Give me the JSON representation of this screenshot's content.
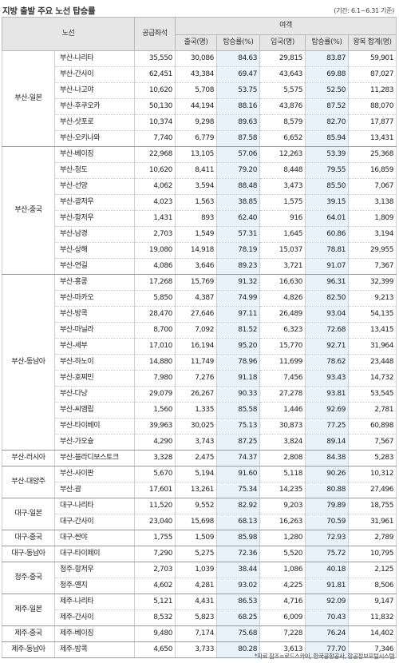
{
  "title": "지방 출발 주요 노선 탑승률",
  "period": "(기간: 6.1~6.31 기준)",
  "headers": {
    "route": "노선",
    "seats": "공급좌석",
    "passengers": "여객",
    "departure": "출국(명)",
    "departure_rate": "탑승률(%)",
    "arrival": "입국(명)",
    "arrival_rate": "탑승률(%)",
    "total": "왕복 합계(명)"
  },
  "groups": [
    {
      "region": "부산-일본",
      "rows": [
        [
          "부산-나리타",
          "35,550",
          "30,086",
          "84.63",
          "29,815",
          "83.87",
          "59,901"
        ],
        [
          "부산-간사이",
          "62,451",
          "43,384",
          "69.47",
          "43,643",
          "69.88",
          "87,027"
        ],
        [
          "부산-나고야",
          "10,620",
          "5,708",
          "53.75",
          "5,575",
          "52.50",
          "11,283"
        ],
        [
          "부산-후쿠오카",
          "50,130",
          "44,194",
          "88.16",
          "43,876",
          "87.52",
          "88,070"
        ],
        [
          "부산-삿포로",
          "10,374",
          "9,298",
          "89.63",
          "8,579",
          "82.70",
          "17,877"
        ],
        [
          "부산-오키나와",
          "7,740",
          "6,779",
          "87.58",
          "6,652",
          "85.94",
          "13,431"
        ]
      ]
    },
    {
      "region": "부산-중국",
      "rows": [
        [
          "부산-베이징",
          "22,968",
          "13,105",
          "57.06",
          "12,263",
          "53.39",
          "25,368"
        ],
        [
          "부산-청도",
          "10,620",
          "8,411",
          "79.20",
          "8,448",
          "79.55",
          "16,859"
        ],
        [
          "부산-선양",
          "4,062",
          "3,594",
          "88.48",
          "3,473",
          "85.50",
          "7,067"
        ],
        [
          "부산-광저우",
          "4,023",
          "1,563",
          "38.85",
          "1,575",
          "39.15",
          "3,138"
        ],
        [
          "부산-항저우",
          "1,431",
          "893",
          "62.40",
          "916",
          "64.01",
          "1,809"
        ],
        [
          "부산-남경",
          "2,703",
          "1,549",
          "57.31",
          "1,645",
          "60.86",
          "3,194"
        ],
        [
          "부산-상해",
          "19,080",
          "14,918",
          "78.19",
          "15,037",
          "78.81",
          "29,955"
        ],
        [
          "부산-연길",
          "4,086",
          "3,646",
          "89.23",
          "3,721",
          "91.07",
          "7,367"
        ]
      ]
    },
    {
      "region": "부산-동남아",
      "rows": [
        [
          "부산-홍콩",
          "17,268",
          "15,769",
          "91.32",
          "16,630",
          "96.31",
          "32,399"
        ],
        [
          "부산-마카오",
          "5,850",
          "4,387",
          "74.99",
          "4,826",
          "82.50",
          "9,213"
        ],
        [
          "부산-방콕",
          "28,470",
          "27,646",
          "97.11",
          "26,489",
          "93.04",
          "54,135"
        ],
        [
          "부산-마닐라",
          "8,700",
          "7,092",
          "81.52",
          "6,323",
          "72.68",
          "13,415"
        ],
        [
          "부산-세부",
          "17,010",
          "16,194",
          "95.20",
          "15,770",
          "92.71",
          "31,964"
        ],
        [
          "부산-하노이",
          "14,880",
          "11,749",
          "78.96",
          "11,699",
          "78.62",
          "23,448"
        ],
        [
          "부산-호찌민",
          "7,980",
          "7,276",
          "91.18",
          "7,456",
          "93.43",
          "14,732"
        ],
        [
          "부산-다낭",
          "29,079",
          "26,267",
          "90.33",
          "27,278",
          "93.81",
          "53,545"
        ],
        [
          "부산-씨엠립",
          "1,560",
          "1,335",
          "85.58",
          "1,446",
          "92.69",
          "2,781"
        ],
        [
          "부산-타이베이",
          "39,963",
          "30,025",
          "75.13",
          "30,873",
          "77.25",
          "60,898"
        ],
        [
          "부산-가오슝",
          "4,290",
          "3,743",
          "87.25",
          "3,824",
          "89.14",
          "7,567"
        ]
      ]
    },
    {
      "region": "부산-러시아",
      "rows": [
        [
          "부산-블라디보스토크",
          "3,328",
          "2,475",
          "74.37",
          "2,808",
          "84.38",
          "5,283"
        ]
      ]
    },
    {
      "region": "부산-대양주",
      "rows": [
        [
          "부산-사이판",
          "5,670",
          "5,194",
          "91.60",
          "5,118",
          "90.26",
          "10,312"
        ],
        [
          "부산-괌",
          "17,601",
          "13,261",
          "75.34",
          "14,235",
          "80.88",
          "27,496"
        ]
      ]
    },
    {
      "region": "대구-일본",
      "rows": [
        [
          "대구-나리타",
          "11,520",
          "9,552",
          "82.92",
          "9,203",
          "79.89",
          "18,755"
        ],
        [
          "대구-간사이",
          "23,040",
          "15,698",
          "68.13",
          "16,263",
          "70.59",
          "31,961"
        ]
      ]
    },
    {
      "region": "대구-중국",
      "rows": [
        [
          "대구-싼야",
          "1,755",
          "1,509",
          "85.98",
          "1,280",
          "72.93",
          "2,789"
        ]
      ]
    },
    {
      "region": "대구-동남아",
      "rows": [
        [
          "대구-타이페이",
          "7,290",
          "5,275",
          "72.36",
          "5,520",
          "75.72",
          "10,795"
        ]
      ]
    },
    {
      "region": "청주-중국",
      "rows": [
        [
          "청주-항저우",
          "2,703",
          "1,039",
          "38.44",
          "1,086",
          "40.18",
          "2,125"
        ],
        [
          "청주-옌지",
          "4,602",
          "4,281",
          "93.02",
          "4,225",
          "91.81",
          "8,506"
        ]
      ]
    },
    {
      "region": "제주-일본",
      "rows": [
        [
          "제주-나리타",
          "5,121",
          "4,431",
          "86.53",
          "4,716",
          "92.09",
          "9,147"
        ],
        [
          "제주-간사이",
          "8,532",
          "5,823",
          "68.25",
          "6,009",
          "70.43",
          "11,832"
        ]
      ]
    },
    {
      "region": "제주-중국",
      "rows": [
        [
          "제주-베이징",
          "9,480",
          "7,174",
          "75.68",
          "7,228",
          "76.24",
          "14,402"
        ]
      ]
    },
    {
      "region": "제주-동남아",
      "rows": [
        [
          "제주-방콕",
          "4,650",
          "3,733",
          "80.28",
          "3,613",
          "77.70",
          "7,346"
        ]
      ]
    }
  ],
  "source": "*자료 참조=로드스카이, 한국공항공사, 항공정보포털시스템"
}
